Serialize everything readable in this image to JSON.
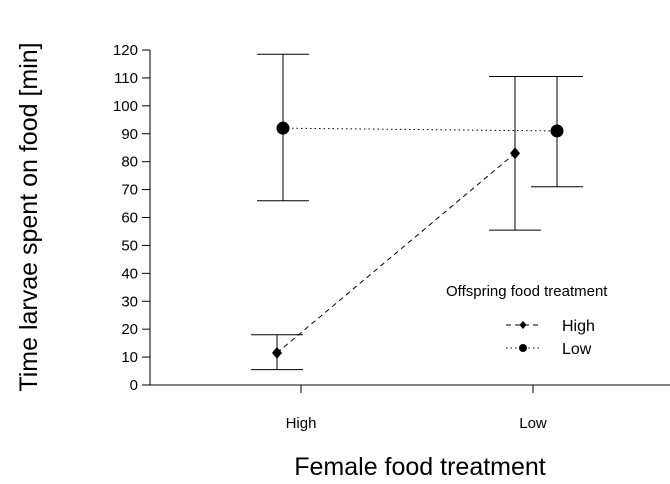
{
  "chart_data": {
    "type": "line",
    "title": "",
    "xlabel": "Female food treatment",
    "ylabel": "Time larvae spent on food [min]",
    "categories": [
      "High",
      "Low"
    ],
    "ylim": [
      0,
      120
    ],
    "yticks": [
      0,
      10,
      20,
      30,
      40,
      50,
      60,
      70,
      80,
      90,
      100,
      110,
      120
    ],
    "grid": false,
    "legend": {
      "title": "Offspring food treatment",
      "position": "right"
    },
    "series": [
      {
        "name": "High",
        "marker": "diamond",
        "linestyle": "dashed",
        "values": [
          11.5,
          83
        ],
        "lower": [
          5.5,
          55.5
        ],
        "upper": [
          18,
          110.5
        ]
      },
      {
        "name": "Low",
        "marker": "circle",
        "linestyle": "dotted",
        "values": [
          92,
          91
        ],
        "lower": [
          66,
          71
        ],
        "upper": [
          118.5,
          110.5
        ]
      }
    ]
  }
}
